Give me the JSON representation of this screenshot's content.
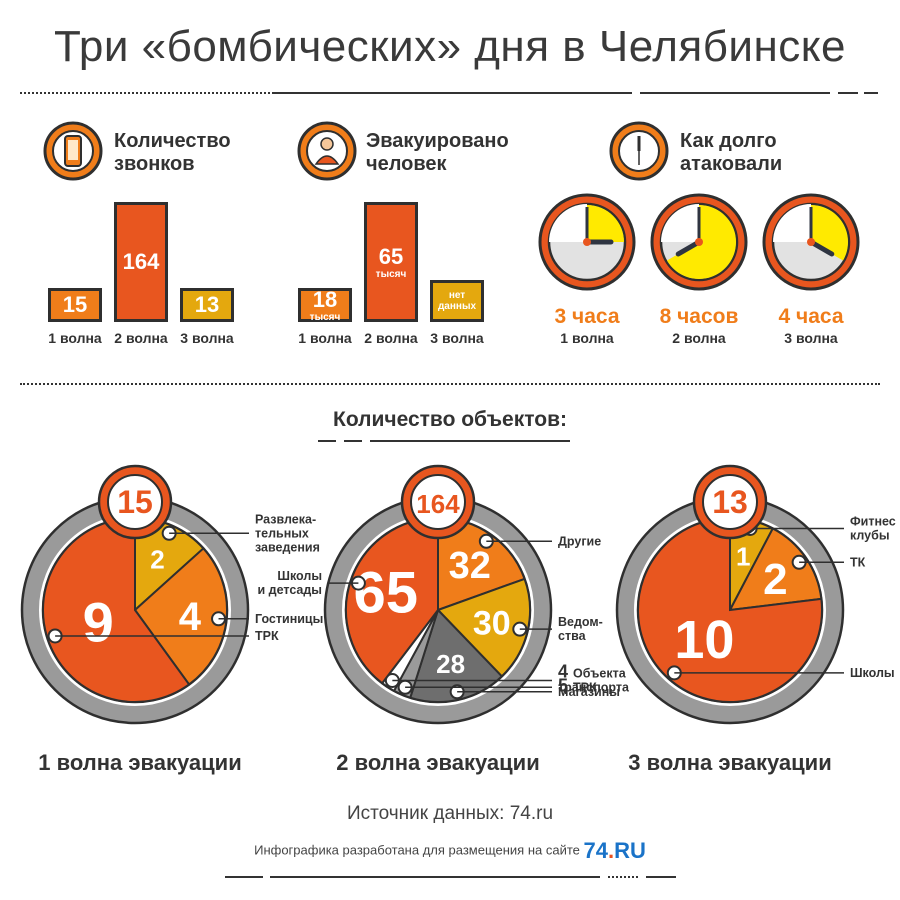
{
  "title": "Три «бомбических» дня в Челябинске",
  "colors": {
    "orange_dark": "#e8561f",
    "orange": "#f07d1a",
    "gold": "#e4a80e",
    "yellow": "#ffea00",
    "gray": "#9a9a9a",
    "dark_gray": "#6e6e6e",
    "outline": "#2f2f2f",
    "brand_blue": "#1a73c8"
  },
  "calls": {
    "heading_line1": "Количество",
    "heading_line2": "звонков",
    "icon": "phone-icon",
    "chart_data": {
      "type": "bar",
      "categories": [
        "1 волна",
        "2 волна",
        "3 волна"
      ],
      "values": [
        15,
        164,
        13
      ],
      "labels": [
        "15",
        "164",
        "13"
      ]
    }
  },
  "evacuated": {
    "heading_line1": "Эвакуировано",
    "heading_line2": "человек",
    "icon": "person-icon",
    "chart_data": {
      "type": "bar",
      "categories": [
        "1 волна",
        "2 волна",
        "3 волна"
      ],
      "values": [
        18000,
        65000,
        null
      ],
      "labels": [
        "18",
        "65",
        "нет"
      ],
      "units": [
        "тысяч",
        "тысяч",
        "данных"
      ]
    }
  },
  "duration": {
    "heading_line1": "Как долго",
    "heading_line2": "атаковали",
    "icon": "clock-icon",
    "items": [
      {
        "value_hours": 3,
        "label": "3 часа",
        "wave": "1 волна"
      },
      {
        "value_hours": 8,
        "label": "8 часов",
        "wave": "2 волна"
      },
      {
        "value_hours": 4,
        "label": "4 часа",
        "wave": "3 волна"
      }
    ]
  },
  "objects": {
    "heading": "Количество объектов:",
    "chart_data": [
      {
        "type": "pie",
        "total": "15",
        "caption": "1 волна эвакуации",
        "slices": [
          {
            "value": 2,
            "label": "2",
            "name": "Развлека-|тельных|заведения"
          },
          {
            "value": 4,
            "label": "4",
            "name": "Гостиницы"
          },
          {
            "value": 9,
            "label": "9",
            "name": "ТРК"
          }
        ]
      },
      {
        "type": "pie",
        "total": "164",
        "caption": "2 волна эвакуации",
        "slices": [
          {
            "value": 32,
            "label": "32",
            "name": "Другие"
          },
          {
            "value": 30,
            "label": "30",
            "name": "Ведом-|ства"
          },
          {
            "value": 28,
            "label": "28",
            "name": "Магазины"
          },
          {
            "value": 5,
            "label": "5",
            "name": "ТРК"
          },
          {
            "value": 4,
            "label": "4",
            "name": "Объекта|транспорта"
          },
          {
            "value": 65,
            "label": "65",
            "name": "Школы|и детсады"
          }
        ]
      },
      {
        "type": "pie",
        "total": "13",
        "caption": "3 волна эвакуации",
        "slices": [
          {
            "value": 1,
            "label": "1",
            "name": "Фитнес|клубы"
          },
          {
            "value": 2,
            "label": "2",
            "name": "ТК"
          },
          {
            "value": 10,
            "label": "10",
            "name": "Школы"
          }
        ]
      }
    ]
  },
  "source": "Источник данных: 74.ru",
  "credit": "Инфографика разработана для размещения на сайте",
  "logo_num": "74",
  "logo_dot": ".",
  "logo_ru": "RU"
}
